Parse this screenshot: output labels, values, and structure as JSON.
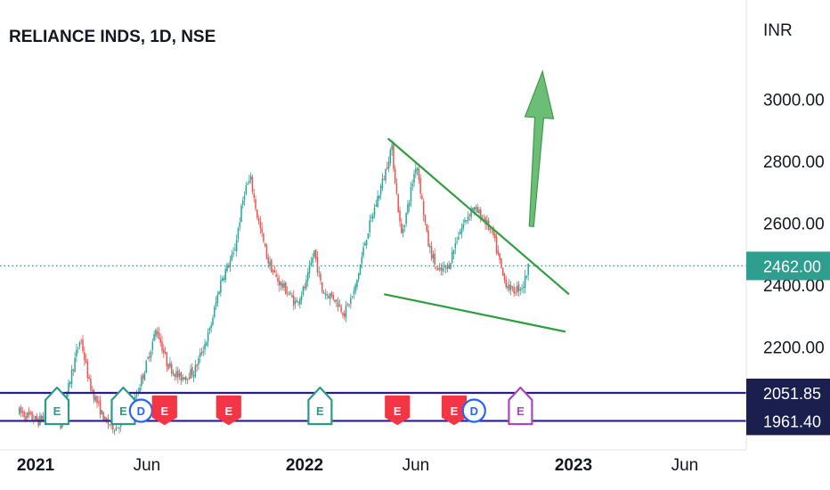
{
  "chart_data": {
    "type": "candlestick",
    "title": "RELIANCE INDS, 1D, NSE",
    "currency_label": "INR",
    "y_ticks": [
      {
        "value": 2200,
        "label": "2200.00"
      },
      {
        "value": 2400,
        "label": "2400.00"
      },
      {
        "value": 2600,
        "label": "2600.00"
      },
      {
        "value": 2800,
        "label": "2800.00"
      },
      {
        "value": 3000,
        "label": "3000.00"
      }
    ],
    "x_ticks": [
      {
        "label": "2021",
        "x": "2021-01-01",
        "bold": true
      },
      {
        "label": "Jun",
        "x": "2021-06-01",
        "bold": false
      },
      {
        "label": "2022",
        "x": "2022-01-01",
        "bold": true
      },
      {
        "label": "Jun",
        "x": "2022-06-01",
        "bold": false
      },
      {
        "label": "2023",
        "x": "2023-01-01",
        "bold": true
      },
      {
        "label": "Jun",
        "x": "2023-06-01",
        "bold": false
      }
    ],
    "current_price": {
      "value": 2462,
      "label": "2462.00"
    },
    "horizontal_levels": [
      {
        "value": 2051.85,
        "label": "2051.85"
      },
      {
        "value": 1961.4,
        "label": "1961.40"
      }
    ],
    "price_path": [
      [
        "2020-12-10",
        1990
      ],
      [
        "2021-01-05",
        1960
      ],
      [
        "2021-01-20",
        2000
      ],
      [
        "2021-02-05",
        1950
      ],
      [
        "2021-02-18",
        2110
      ],
      [
        "2021-03-03",
        2230
      ],
      [
        "2021-03-15",
        2080
      ],
      [
        "2021-04-05",
        1960
      ],
      [
        "2021-04-20",
        1940
      ],
      [
        "2021-05-12",
        2000
      ],
      [
        "2021-06-01",
        2150
      ],
      [
        "2021-06-14",
        2260
      ],
      [
        "2021-06-28",
        2150
      ],
      [
        "2021-07-15",
        2100
      ],
      [
        "2021-08-04",
        2120
      ],
      [
        "2021-08-25",
        2250
      ],
      [
        "2021-09-10",
        2420
      ],
      [
        "2021-09-27",
        2500
      ],
      [
        "2021-10-12",
        2710
      ],
      [
        "2021-10-20",
        2740
      ],
      [
        "2021-10-29",
        2620
      ],
      [
        "2021-11-12",
        2480
      ],
      [
        "2021-11-24",
        2420
      ],
      [
        "2021-12-08",
        2380
      ],
      [
        "2021-12-20",
        2340
      ],
      [
        "2022-01-03",
        2400
      ],
      [
        "2022-01-14",
        2510
      ],
      [
        "2022-01-25",
        2380
      ],
      [
        "2022-02-10",
        2360
      ],
      [
        "2022-02-24",
        2310
      ],
      [
        "2022-03-10",
        2380
      ],
      [
        "2022-03-25",
        2550
      ],
      [
        "2022-04-05",
        2640
      ],
      [
        "2022-04-20",
        2760
      ],
      [
        "2022-04-29",
        2850
      ],
      [
        "2022-05-12",
        2560
      ],
      [
        "2022-05-20",
        2640
      ],
      [
        "2022-06-02",
        2800
      ],
      [
        "2022-06-17",
        2540
      ],
      [
        "2022-07-01",
        2440
      ],
      [
        "2022-07-15",
        2460
      ],
      [
        "2022-07-28",
        2560
      ],
      [
        "2022-08-16",
        2650
      ],
      [
        "2022-08-31",
        2620
      ],
      [
        "2022-09-14",
        2560
      ],
      [
        "2022-09-28",
        2420
      ],
      [
        "2022-10-10",
        2380
      ],
      [
        "2022-10-25",
        2400
      ],
      [
        "2022-11-01",
        2460
      ]
    ],
    "trendlines": [
      {
        "name": "upper",
        "from": [
          "2022-04-25",
          2872
        ],
        "to": [
          "2022-12-25",
          2372
        ],
        "color": "#2e9e3f"
      },
      {
        "name": "lower",
        "from": [
          "2022-04-20",
          2370
        ],
        "to": [
          "2022-12-20",
          2250
        ],
        "color": "#2e9e3f"
      }
    ],
    "arrow": {
      "from": [
        "2022-11-05",
        2590
      ],
      "to": [
        "2022-11-20",
        3090
      ],
      "color": "#52b35f"
    },
    "events": [
      {
        "letter": "E",
        "x": "2021-01-30",
        "color": "#2d9a86",
        "filled": false
      },
      {
        "letter": "E",
        "x": "2021-04-30",
        "color": "#2d9a86",
        "filled": false
      },
      {
        "letter": "D",
        "x": "2021-05-24",
        "color": "#2962ff",
        "filled": false
      },
      {
        "letter": "E",
        "x": "2021-06-25",
        "color": "#f23645",
        "filled": true
      },
      {
        "letter": "E",
        "x": "2021-09-20",
        "color": "#f23645",
        "filled": true
      },
      {
        "letter": "E",
        "x": "2022-01-22",
        "color": "#2d9a86",
        "filled": false
      },
      {
        "letter": "E",
        "x": "2022-05-07",
        "color": "#f23645",
        "filled": true
      },
      {
        "letter": "E",
        "x": "2022-07-23",
        "color": "#f23645",
        "filled": true
      },
      {
        "letter": "D",
        "x": "2022-08-19",
        "color": "#2962ff",
        "filled": false
      },
      {
        "letter": "E",
        "x": "2022-10-21",
        "color": "#ab47bc",
        "filled": false
      }
    ],
    "colors": {
      "up": "#26a69a",
      "down": "#ef5350",
      "level_line": "#2a1f8a",
      "badge": "#1a1f4d",
      "current_badge": "#2e9e8f"
    }
  }
}
